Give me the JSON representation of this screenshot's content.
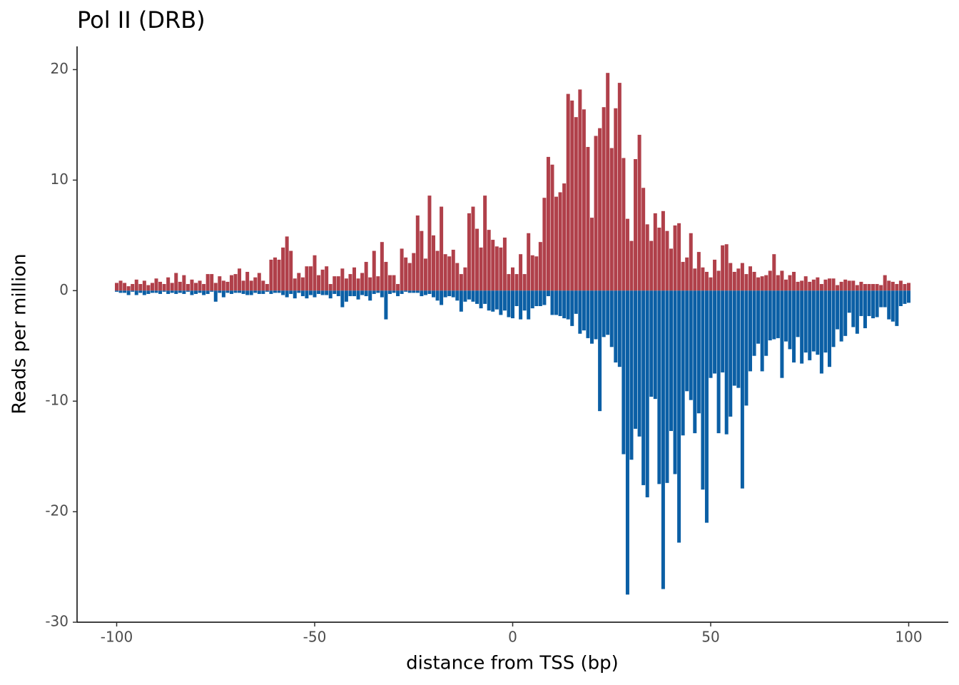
{
  "chart_data": {
    "type": "bar",
    "title": "Pol II (DRB)",
    "x_label": "distance from TSS (bp)",
    "y_label": "Reads per million",
    "x": [
      -100,
      -99,
      -98,
      -97,
      -96,
      -95,
      -94,
      -93,
      -92,
      -91,
      -90,
      -89,
      -88,
      -87,
      -86,
      -85,
      -84,
      -83,
      -82,
      -81,
      -80,
      -79,
      -78,
      -77,
      -76,
      -75,
      -74,
      -73,
      -72,
      -71,
      -70,
      -69,
      -68,
      -67,
      -66,
      -65,
      -64,
      -63,
      -62,
      -61,
      -60,
      -59,
      -58,
      -57,
      -56,
      -55,
      -54,
      -53,
      -52,
      -51,
      -50,
      -49,
      -48,
      -47,
      -46,
      -45,
      -44,
      -43,
      -42,
      -41,
      -40,
      -39,
      -38,
      -37,
      -36,
      -35,
      -34,
      -33,
      -32,
      -31,
      -30,
      -29,
      -28,
      -27,
      -26,
      -25,
      -24,
      -23,
      -22,
      -21,
      -20,
      -19,
      -18,
      -17,
      -16,
      -15,
      -14,
      -13,
      -12,
      -11,
      -10,
      -9,
      -8,
      -7,
      -6,
      -5,
      -4,
      -3,
      -2,
      -1,
      0,
      1,
      2,
      3,
      4,
      5,
      6,
      7,
      8,
      9,
      10,
      11,
      12,
      13,
      14,
      15,
      16,
      17,
      18,
      19,
      20,
      21,
      22,
      23,
      24,
      25,
      26,
      27,
      28,
      29,
      30,
      31,
      32,
      33,
      34,
      35,
      36,
      37,
      38,
      39,
      40,
      41,
      42,
      43,
      44,
      45,
      46,
      47,
      48,
      49,
      50,
      51,
      52,
      53,
      54,
      55,
      56,
      57,
      58,
      59,
      60,
      61,
      62,
      63,
      64,
      65,
      66,
      67,
      68,
      69,
      70,
      71,
      72,
      73,
      74,
      75,
      76,
      77,
      78,
      79,
      80,
      81,
      82,
      83,
      84,
      85,
      86,
      87,
      88,
      89,
      90,
      91,
      92,
      93,
      94,
      95,
      96,
      97,
      98,
      99,
      100
    ],
    "series": [
      {
        "color": "#b0404a",
        "values": [
          0.7,
          0.9,
          0.7,
          0.4,
          0.6,
          1.0,
          0.6,
          0.9,
          0.5,
          0.7,
          1.1,
          0.8,
          0.6,
          1.2,
          0.7,
          1.6,
          0.8,
          1.4,
          0.6,
          1.0,
          0.7,
          0.9,
          0.6,
          1.5,
          1.5,
          0.7,
          1.3,
          0.9,
          0.8,
          1.4,
          1.5,
          2.0,
          0.9,
          1.7,
          0.9,
          1.2,
          1.6,
          0.9,
          0.6,
          2.8,
          3.0,
          2.8,
          3.9,
          4.9,
          3.6,
          1.1,
          1.6,
          1.2,
          2.2,
          2.2,
          3.2,
          1.4,
          1.9,
          2.2,
          0.6,
          1.3,
          1.3,
          2.0,
          1.1,
          1.5,
          2.1,
          1.1,
          1.6,
          2.6,
          1.2,
          3.6,
          1.3,
          4.4,
          2.6,
          1.4,
          1.4,
          0.6,
          3.8,
          3.0,
          2.5,
          3.4,
          6.8,
          5.4,
          2.9,
          8.6,
          5.0,
          3.6,
          7.6,
          3.3,
          3.1,
          3.7,
          2.5,
          1.5,
          2.1,
          7.0,
          7.6,
          5.6,
          3.9,
          8.6,
          5.5,
          4.6,
          4.0,
          3.9,
          4.8,
          1.5,
          2.1,
          1.5,
          3.3,
          1.5,
          5.2,
          3.2,
          3.1,
          4.4,
          8.4,
          12.1,
          11.4,
          8.5,
          8.9,
          9.7,
          17.8,
          17.2,
          15.7,
          18.2,
          16.4,
          13.0,
          6.6,
          14.0,
          14.7,
          16.6,
          19.7,
          12.9,
          16.5,
          18.8,
          12.0,
          6.5,
          4.5,
          11.9,
          14.1,
          9.3,
          6.0,
          4.5,
          7.0,
          5.7,
          7.2,
          5.4,
          3.8,
          5.9,
          6.1,
          2.6,
          3.0,
          5.2,
          2.0,
          3.5,
          2.1,
          1.7,
          1.2,
          2.8,
          1.8,
          4.1,
          4.2,
          2.5,
          1.7,
          2.0,
          2.5,
          1.5,
          2.2,
          1.7,
          1.2,
          1.3,
          1.4,
          1.8,
          3.3,
          1.4,
          1.8,
          1.0,
          1.4,
          1.7,
          0.8,
          0.9,
          1.3,
          0.8,
          1.0,
          1.2,
          0.6,
          1.0,
          1.1,
          1.1,
          0.5,
          0.8,
          1.0,
          0.9,
          0.9,
          0.5,
          0.8,
          0.6,
          0.6,
          0.6,
          0.6,
          0.5,
          1.4,
          0.9,
          0.8,
          0.6,
          0.9,
          0.6,
          0.7
        ]
      },
      {
        "color": "#0b5fa5",
        "values": [
          -0.1,
          -0.2,
          -0.2,
          -0.4,
          -0.1,
          -0.4,
          -0.2,
          -0.4,
          -0.3,
          -0.2,
          -0.2,
          -0.3,
          -0.1,
          -0.3,
          -0.2,
          -0.3,
          -0.2,
          -0.3,
          -0.1,
          -0.4,
          -0.3,
          -0.2,
          -0.4,
          -0.3,
          -0.1,
          -1.0,
          -0.2,
          -0.6,
          -0.2,
          -0.3,
          -0.2,
          -0.2,
          -0.3,
          -0.4,
          -0.4,
          -0.2,
          -0.3,
          -0.3,
          -0.1,
          -0.3,
          -0.2,
          -0.2,
          -0.4,
          -0.6,
          -0.3,
          -0.7,
          -0.2,
          -0.5,
          -0.7,
          -0.4,
          -0.6,
          -0.3,
          -0.4,
          -0.4,
          -0.7,
          -0.3,
          -0.5,
          -1.5,
          -1.0,
          -0.5,
          -0.5,
          -0.8,
          -0.4,
          -0.5,
          -0.9,
          -0.3,
          -0.2,
          -0.6,
          -2.6,
          -0.3,
          -0.2,
          -0.5,
          -0.3,
          -0.1,
          -0.2,
          -0.2,
          -0.2,
          -0.5,
          -0.4,
          -0.3,
          -0.6,
          -0.9,
          -1.3,
          -0.6,
          -0.5,
          -0.6,
          -0.9,
          -1.9,
          -1.0,
          -0.8,
          -1.0,
          -1.2,
          -1.6,
          -1.2,
          -1.8,
          -1.9,
          -1.7,
          -2.2,
          -1.8,
          -2.4,
          -2.5,
          -1.4,
          -2.6,
          -1.8,
          -2.6,
          -1.6,
          -1.4,
          -1.4,
          -1.3,
          -0.5,
          -2.2,
          -2.2,
          -2.3,
          -2.5,
          -2.6,
          -3.2,
          -2.1,
          -3.9,
          -3.6,
          -4.3,
          -4.8,
          -4.4,
          -10.9,
          -4.2,
          -4.0,
          -5.1,
          -6.5,
          -6.9,
          -14.8,
          -27.5,
          -15.3,
          -12.5,
          -13.2,
          -17.6,
          -18.7,
          -9.6,
          -9.8,
          -17.5,
          -27.0,
          -17.4,
          -12.7,
          -16.6,
          -22.8,
          -13.1,
          -9.1,
          -9.9,
          -12.9,
          -11.1,
          -18.0,
          -21.0,
          -7.9,
          -7.5,
          -12.9,
          -7.4,
          -13.0,
          -11.4,
          -8.6,
          -8.8,
          -17.9,
          -10.4,
          -7.3,
          -5.9,
          -4.8,
          -7.3,
          -5.9,
          -4.5,
          -4.4,
          -4.3,
          -7.9,
          -4.6,
          -5.3,
          -6.5,
          -4.2,
          -6.6,
          -5.6,
          -6.3,
          -5.5,
          -5.8,
          -7.5,
          -5.6,
          -6.9,
          -5.1,
          -3.5,
          -4.6,
          -4.1,
          -2.0,
          -3.3,
          -3.9,
          -2.3,
          -3.4,
          -2.3,
          -2.5,
          -2.4,
          -1.5,
          -1.5,
          -2.6,
          -2.8,
          -3.2,
          -1.4,
          -1.2,
          -1.1
        ]
      }
    ],
    "xlim": [
      -110,
      110
    ],
    "xticks": [
      -100,
      -50,
      0,
      50,
      100
    ],
    "ylim": [
      -30,
      22.1
    ],
    "yticks": [
      -30,
      -20,
      -10,
      0,
      10,
      20
    ]
  }
}
